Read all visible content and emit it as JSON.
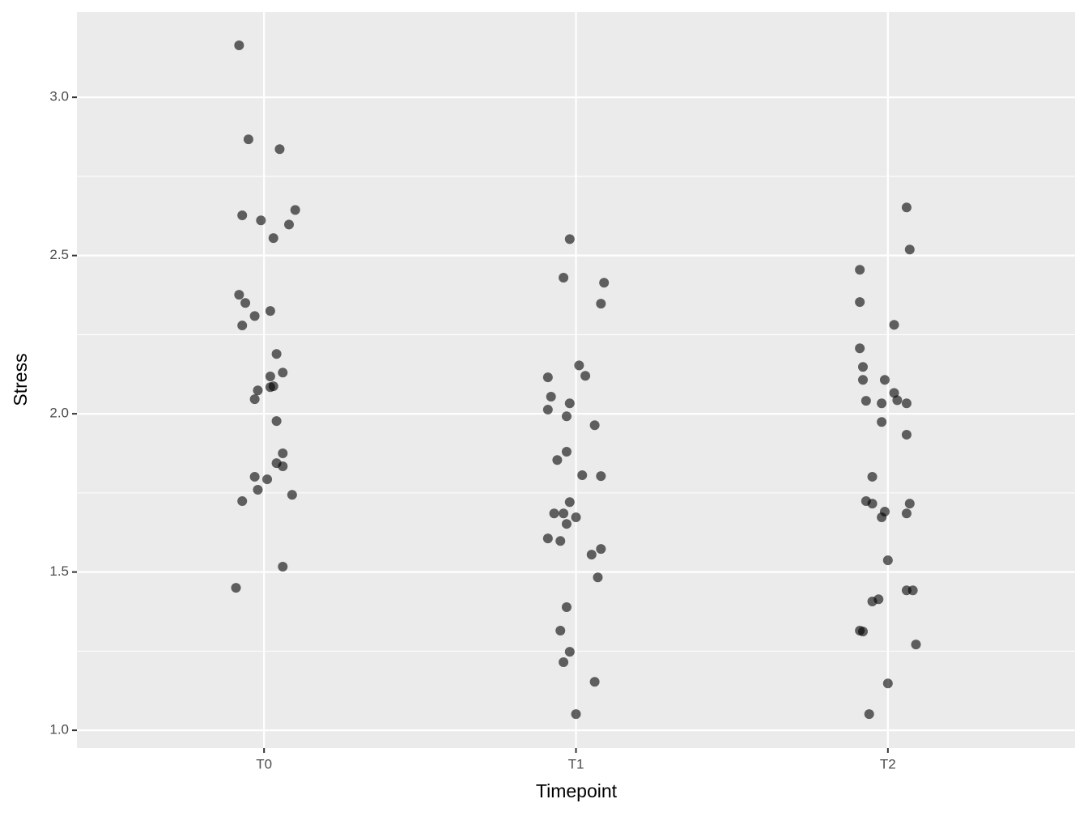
{
  "chart_data": {
    "type": "scatter",
    "x_label": "Timepoint",
    "y_label": "Stress",
    "xlim": [
      0.4,
      3.6
    ],
    "xticks": [
      {
        "value": 1,
        "label": "T0"
      },
      {
        "value": 2,
        "label": "T1"
      },
      {
        "value": 3,
        "label": "T2"
      }
    ],
    "ylim": [
      0.944,
      3.269
    ],
    "yticks": [
      {
        "value": 1,
        "label": "1.0"
      },
      1.5,
      {
        "value": 2,
        "label": "2.0"
      },
      2.5,
      {
        "value": 3,
        "label": "3.0"
      }
    ],
    "y_minor_grid": [
      1.25,
      1.75,
      2.25,
      2.75
    ],
    "grid": true,
    "panel_color": "#ebebeb",
    "series": [
      {
        "color": "#000000",
        "x": [
          0.92,
          0.95,
          1.05,
          0.93,
          0.99,
          1.1,
          1.08,
          1.03,
          0.92,
          0.94,
          1.02,
          0.97,
          0.93,
          1.04,
          1.06,
          1.02,
          1.03,
          0.98,
          1.02,
          0.97,
          1.04,
          1.06,
          1.04,
          1.06,
          0.97,
          1.01,
          0.98,
          1.09,
          0.93,
          1.06,
          0.91,
          1.98,
          1.96,
          2.09,
          2.08,
          2.01,
          2.03,
          1.91,
          1.92,
          1.98,
          1.91,
          1.97,
          2.06,
          1.97,
          1.94,
          2.02,
          2.08,
          1.98,
          1.93,
          1.96,
          2.0,
          1.97,
          1.91,
          1.95,
          2.08,
          2.05,
          2.07,
          1.97,
          1.95,
          1.98,
          1.96,
          2.06,
          2.0,
          3.06,
          3.07,
          2.91,
          2.91,
          3.02,
          2.91,
          2.92,
          2.92,
          2.99,
          3.02,
          3.03,
          2.93,
          2.98,
          3.06,
          2.98,
          3.06,
          2.95,
          2.93,
          2.95,
          3.07,
          2.99,
          3.06,
          2.98,
          3.0,
          3.06,
          3.08,
          2.97,
          2.95,
          2.91,
          2.92,
          3.09,
          3.0,
          2.94
        ],
        "values": [
          3.164,
          2.867,
          2.836,
          2.627,
          2.611,
          2.644,
          2.598,
          2.555,
          2.376,
          2.35,
          2.325,
          2.309,
          2.279,
          2.189,
          2.13,
          2.118,
          2.087,
          2.074,
          2.084,
          2.046,
          1.977,
          1.875,
          1.844,
          1.834,
          1.801,
          1.793,
          1.76,
          1.744,
          1.724,
          1.517,
          1.45,
          2.552,
          2.43,
          2.414,
          2.348,
          2.153,
          2.12,
          2.115,
          2.054,
          2.033,
          2.013,
          1.992,
          1.964,
          1.88,
          1.854,
          1.806,
          1.803,
          1.721,
          1.685,
          1.685,
          1.673,
          1.652,
          1.606,
          1.598,
          1.573,
          1.555,
          1.483,
          1.389,
          1.315,
          1.248,
          1.215,
          1.153,
          1.051,
          2.652,
          2.519,
          2.455,
          2.353,
          2.281,
          2.207,
          2.148,
          2.107,
          2.107,
          2.066,
          2.043,
          2.041,
          2.033,
          2.033,
          1.974,
          1.934,
          1.801,
          1.724,
          1.716,
          1.716,
          1.691,
          1.685,
          1.673,
          1.537,
          1.442,
          1.442,
          1.414,
          1.407,
          1.315,
          1.312,
          1.271,
          1.148,
          1.051
        ]
      }
    ]
  }
}
